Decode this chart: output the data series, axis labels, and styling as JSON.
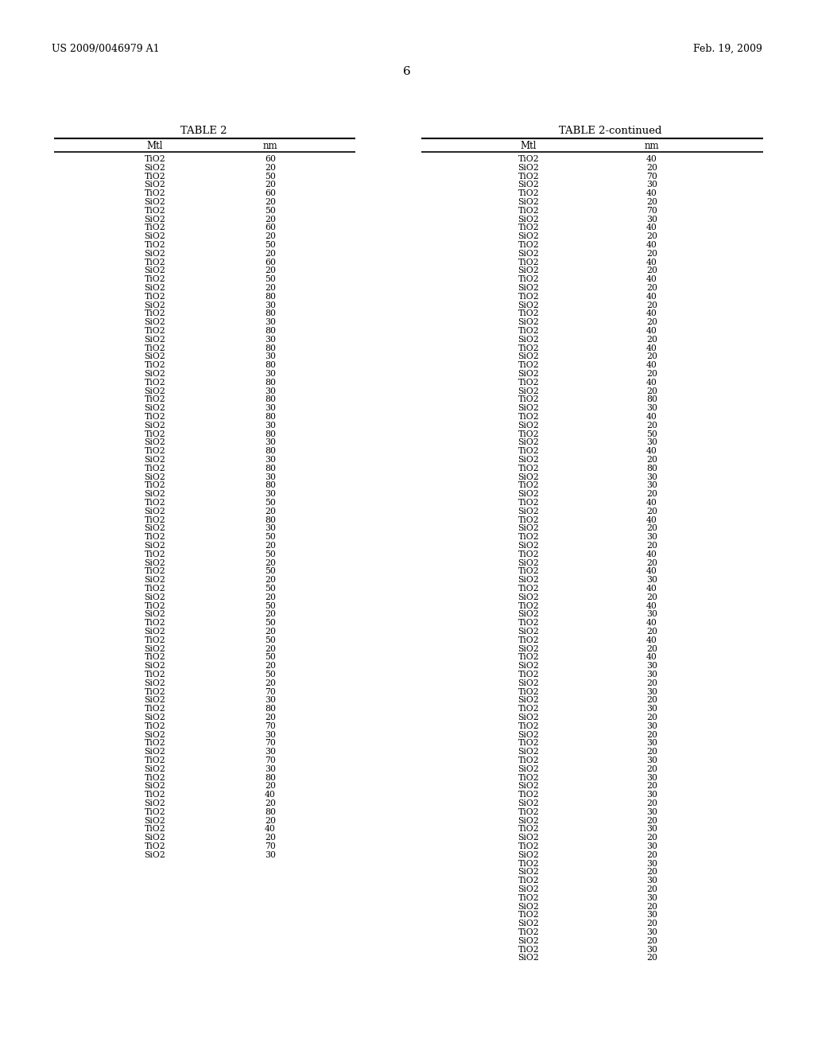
{
  "header_left": "US 2009/0046979 A1",
  "header_right": "Feb. 19, 2009",
  "page_number": "6",
  "table_title_left": "TABLE 2",
  "table_title_right": "TABLE 2-continued",
  "left_data": [
    [
      "TiO2",
      "60"
    ],
    [
      "SiO2",
      "20"
    ],
    [
      "TiO2",
      "50"
    ],
    [
      "SiO2",
      "20"
    ],
    [
      "TiO2",
      "60"
    ],
    [
      "SiO2",
      "20"
    ],
    [
      "TiO2",
      "50"
    ],
    [
      "SiO2",
      "20"
    ],
    [
      "TiO2",
      "60"
    ],
    [
      "SiO2",
      "20"
    ],
    [
      "TiO2",
      "50"
    ],
    [
      "SiO2",
      "20"
    ],
    [
      "TiO2",
      "60"
    ],
    [
      "SiO2",
      "20"
    ],
    [
      "TiO2",
      "50"
    ],
    [
      "SiO2",
      "20"
    ],
    [
      "TiO2",
      "80"
    ],
    [
      "SiO2",
      "30"
    ],
    [
      "TiO2",
      "80"
    ],
    [
      "SiO2",
      "30"
    ],
    [
      "TiO2",
      "80"
    ],
    [
      "SiO2",
      "30"
    ],
    [
      "TiO2",
      "80"
    ],
    [
      "SiO2",
      "30"
    ],
    [
      "TiO2",
      "80"
    ],
    [
      "SiO2",
      "30"
    ],
    [
      "TiO2",
      "80"
    ],
    [
      "SiO2",
      "30"
    ],
    [
      "TiO2",
      "80"
    ],
    [
      "SiO2",
      "30"
    ],
    [
      "TiO2",
      "80"
    ],
    [
      "SiO2",
      "30"
    ],
    [
      "TiO2",
      "80"
    ],
    [
      "SiO2",
      "30"
    ],
    [
      "TiO2",
      "80"
    ],
    [
      "SiO2",
      "30"
    ],
    [
      "TiO2",
      "80"
    ],
    [
      "SiO2",
      "30"
    ],
    [
      "TiO2",
      "80"
    ],
    [
      "SiO2",
      "30"
    ],
    [
      "TiO2",
      "50"
    ],
    [
      "SiO2",
      "20"
    ],
    [
      "TiO2",
      "80"
    ],
    [
      "SiO2",
      "30"
    ],
    [
      "TiO2",
      "50"
    ],
    [
      "SiO2",
      "20"
    ],
    [
      "TiO2",
      "50"
    ],
    [
      "SiO2",
      "20"
    ],
    [
      "TiO2",
      "50"
    ],
    [
      "SiO2",
      "20"
    ],
    [
      "TiO2",
      "50"
    ],
    [
      "SiO2",
      "20"
    ],
    [
      "TiO2",
      "50"
    ],
    [
      "SiO2",
      "20"
    ],
    [
      "TiO2",
      "50"
    ],
    [
      "SiO2",
      "20"
    ],
    [
      "TiO2",
      "50"
    ],
    [
      "SiO2",
      "20"
    ],
    [
      "TiO2",
      "50"
    ],
    [
      "SiO2",
      "20"
    ],
    [
      "TiO2",
      "50"
    ],
    [
      "SiO2",
      "20"
    ],
    [
      "TiO2",
      "70"
    ],
    [
      "SiO2",
      "30"
    ],
    [
      "TiO2",
      "80"
    ],
    [
      "SiO2",
      "20"
    ],
    [
      "TiO2",
      "70"
    ],
    [
      "SiO2",
      "30"
    ],
    [
      "TiO2",
      "70"
    ],
    [
      "SiO2",
      "30"
    ],
    [
      "TiO2",
      "70"
    ],
    [
      "SiO2",
      "30"
    ],
    [
      "TiO2",
      "80"
    ],
    [
      "SiO2",
      "20"
    ],
    [
      "TiO2",
      "40"
    ],
    [
      "SiO2",
      "20"
    ],
    [
      "TiO2",
      "80"
    ],
    [
      "SiO2",
      "20"
    ],
    [
      "TiO2",
      "40"
    ],
    [
      "SiO2",
      "20"
    ],
    [
      "TiO2",
      "70"
    ],
    [
      "SiO2",
      "30"
    ]
  ],
  "right_data": [
    [
      "TiO2",
      "40"
    ],
    [
      "SiO2",
      "20"
    ],
    [
      "TiO2",
      "70"
    ],
    [
      "SiO2",
      "30"
    ],
    [
      "TiO2",
      "40"
    ],
    [
      "SiO2",
      "20"
    ],
    [
      "TiO2",
      "70"
    ],
    [
      "SiO2",
      "30"
    ],
    [
      "TiO2",
      "40"
    ],
    [
      "SiO2",
      "20"
    ],
    [
      "TiO2",
      "40"
    ],
    [
      "SiO2",
      "20"
    ],
    [
      "TiO2",
      "40"
    ],
    [
      "SiO2",
      "20"
    ],
    [
      "TiO2",
      "40"
    ],
    [
      "SiO2",
      "20"
    ],
    [
      "TiO2",
      "40"
    ],
    [
      "SiO2",
      "20"
    ],
    [
      "TiO2",
      "40"
    ],
    [
      "SiO2",
      "20"
    ],
    [
      "TiO2",
      "40"
    ],
    [
      "SiO2",
      "20"
    ],
    [
      "TiO2",
      "40"
    ],
    [
      "SiO2",
      "20"
    ],
    [
      "TiO2",
      "40"
    ],
    [
      "SiO2",
      "20"
    ],
    [
      "TiO2",
      "40"
    ],
    [
      "SiO2",
      "20"
    ],
    [
      "TiO2",
      "80"
    ],
    [
      "SiO2",
      "30"
    ],
    [
      "TiO2",
      "40"
    ],
    [
      "SiO2",
      "20"
    ],
    [
      "TiO2",
      "50"
    ],
    [
      "SiO2",
      "30"
    ],
    [
      "TiO2",
      "40"
    ],
    [
      "SiO2",
      "20"
    ],
    [
      "TiO2",
      "80"
    ],
    [
      "SiO2",
      "30"
    ],
    [
      "TiO2",
      "30"
    ],
    [
      "SiO2",
      "20"
    ],
    [
      "TiO2",
      "40"
    ],
    [
      "SiO2",
      "20"
    ],
    [
      "TiO2",
      "40"
    ],
    [
      "SiO2",
      "20"
    ],
    [
      "TiO2",
      "30"
    ],
    [
      "SiO2",
      "20"
    ],
    [
      "TiO2",
      "40"
    ],
    [
      "SiO2",
      "20"
    ],
    [
      "TiO2",
      "40"
    ],
    [
      "SiO2",
      "30"
    ],
    [
      "TiO2",
      "40"
    ],
    [
      "SiO2",
      "20"
    ],
    [
      "TiO2",
      "40"
    ],
    [
      "SiO2",
      "30"
    ],
    [
      "TiO2",
      "40"
    ],
    [
      "SiO2",
      "20"
    ],
    [
      "TiO2",
      "40"
    ],
    [
      "SiO2",
      "20"
    ],
    [
      "TiO2",
      "40"
    ],
    [
      "SiO2",
      "30"
    ],
    [
      "TiO2",
      "30"
    ],
    [
      "SiO2",
      "20"
    ],
    [
      "TiO2",
      "30"
    ],
    [
      "SiO2",
      "20"
    ],
    [
      "TiO2",
      "30"
    ],
    [
      "SiO2",
      "20"
    ],
    [
      "TiO2",
      "30"
    ],
    [
      "SiO2",
      "20"
    ],
    [
      "TiO2",
      "30"
    ],
    [
      "SiO2",
      "20"
    ],
    [
      "TiO2",
      "30"
    ],
    [
      "SiO2",
      "20"
    ],
    [
      "TiO2",
      "30"
    ],
    [
      "SiO2",
      "20"
    ],
    [
      "TiO2",
      "30"
    ],
    [
      "SiO2",
      "20"
    ],
    [
      "TiO2",
      "30"
    ],
    [
      "SiO2",
      "20"
    ],
    [
      "TiO2",
      "30"
    ],
    [
      "SiO2",
      "20"
    ],
    [
      "TiO2",
      "30"
    ],
    [
      "SiO2",
      "20"
    ],
    [
      "TiO2",
      "30"
    ],
    [
      "SiO2",
      "20"
    ],
    [
      "TiO2",
      "30"
    ],
    [
      "SiO2",
      "20"
    ],
    [
      "TiO2",
      "30"
    ],
    [
      "SiO2",
      "20"
    ],
    [
      "TiO2",
      "30"
    ],
    [
      "SiO2",
      "20"
    ],
    [
      "TiO2",
      "30"
    ],
    [
      "SiO2",
      "20"
    ],
    [
      "TiO2",
      "30"
    ],
    [
      "SiO2",
      "20"
    ]
  ],
  "bg_color": "#ffffff",
  "text_color": "#000000"
}
